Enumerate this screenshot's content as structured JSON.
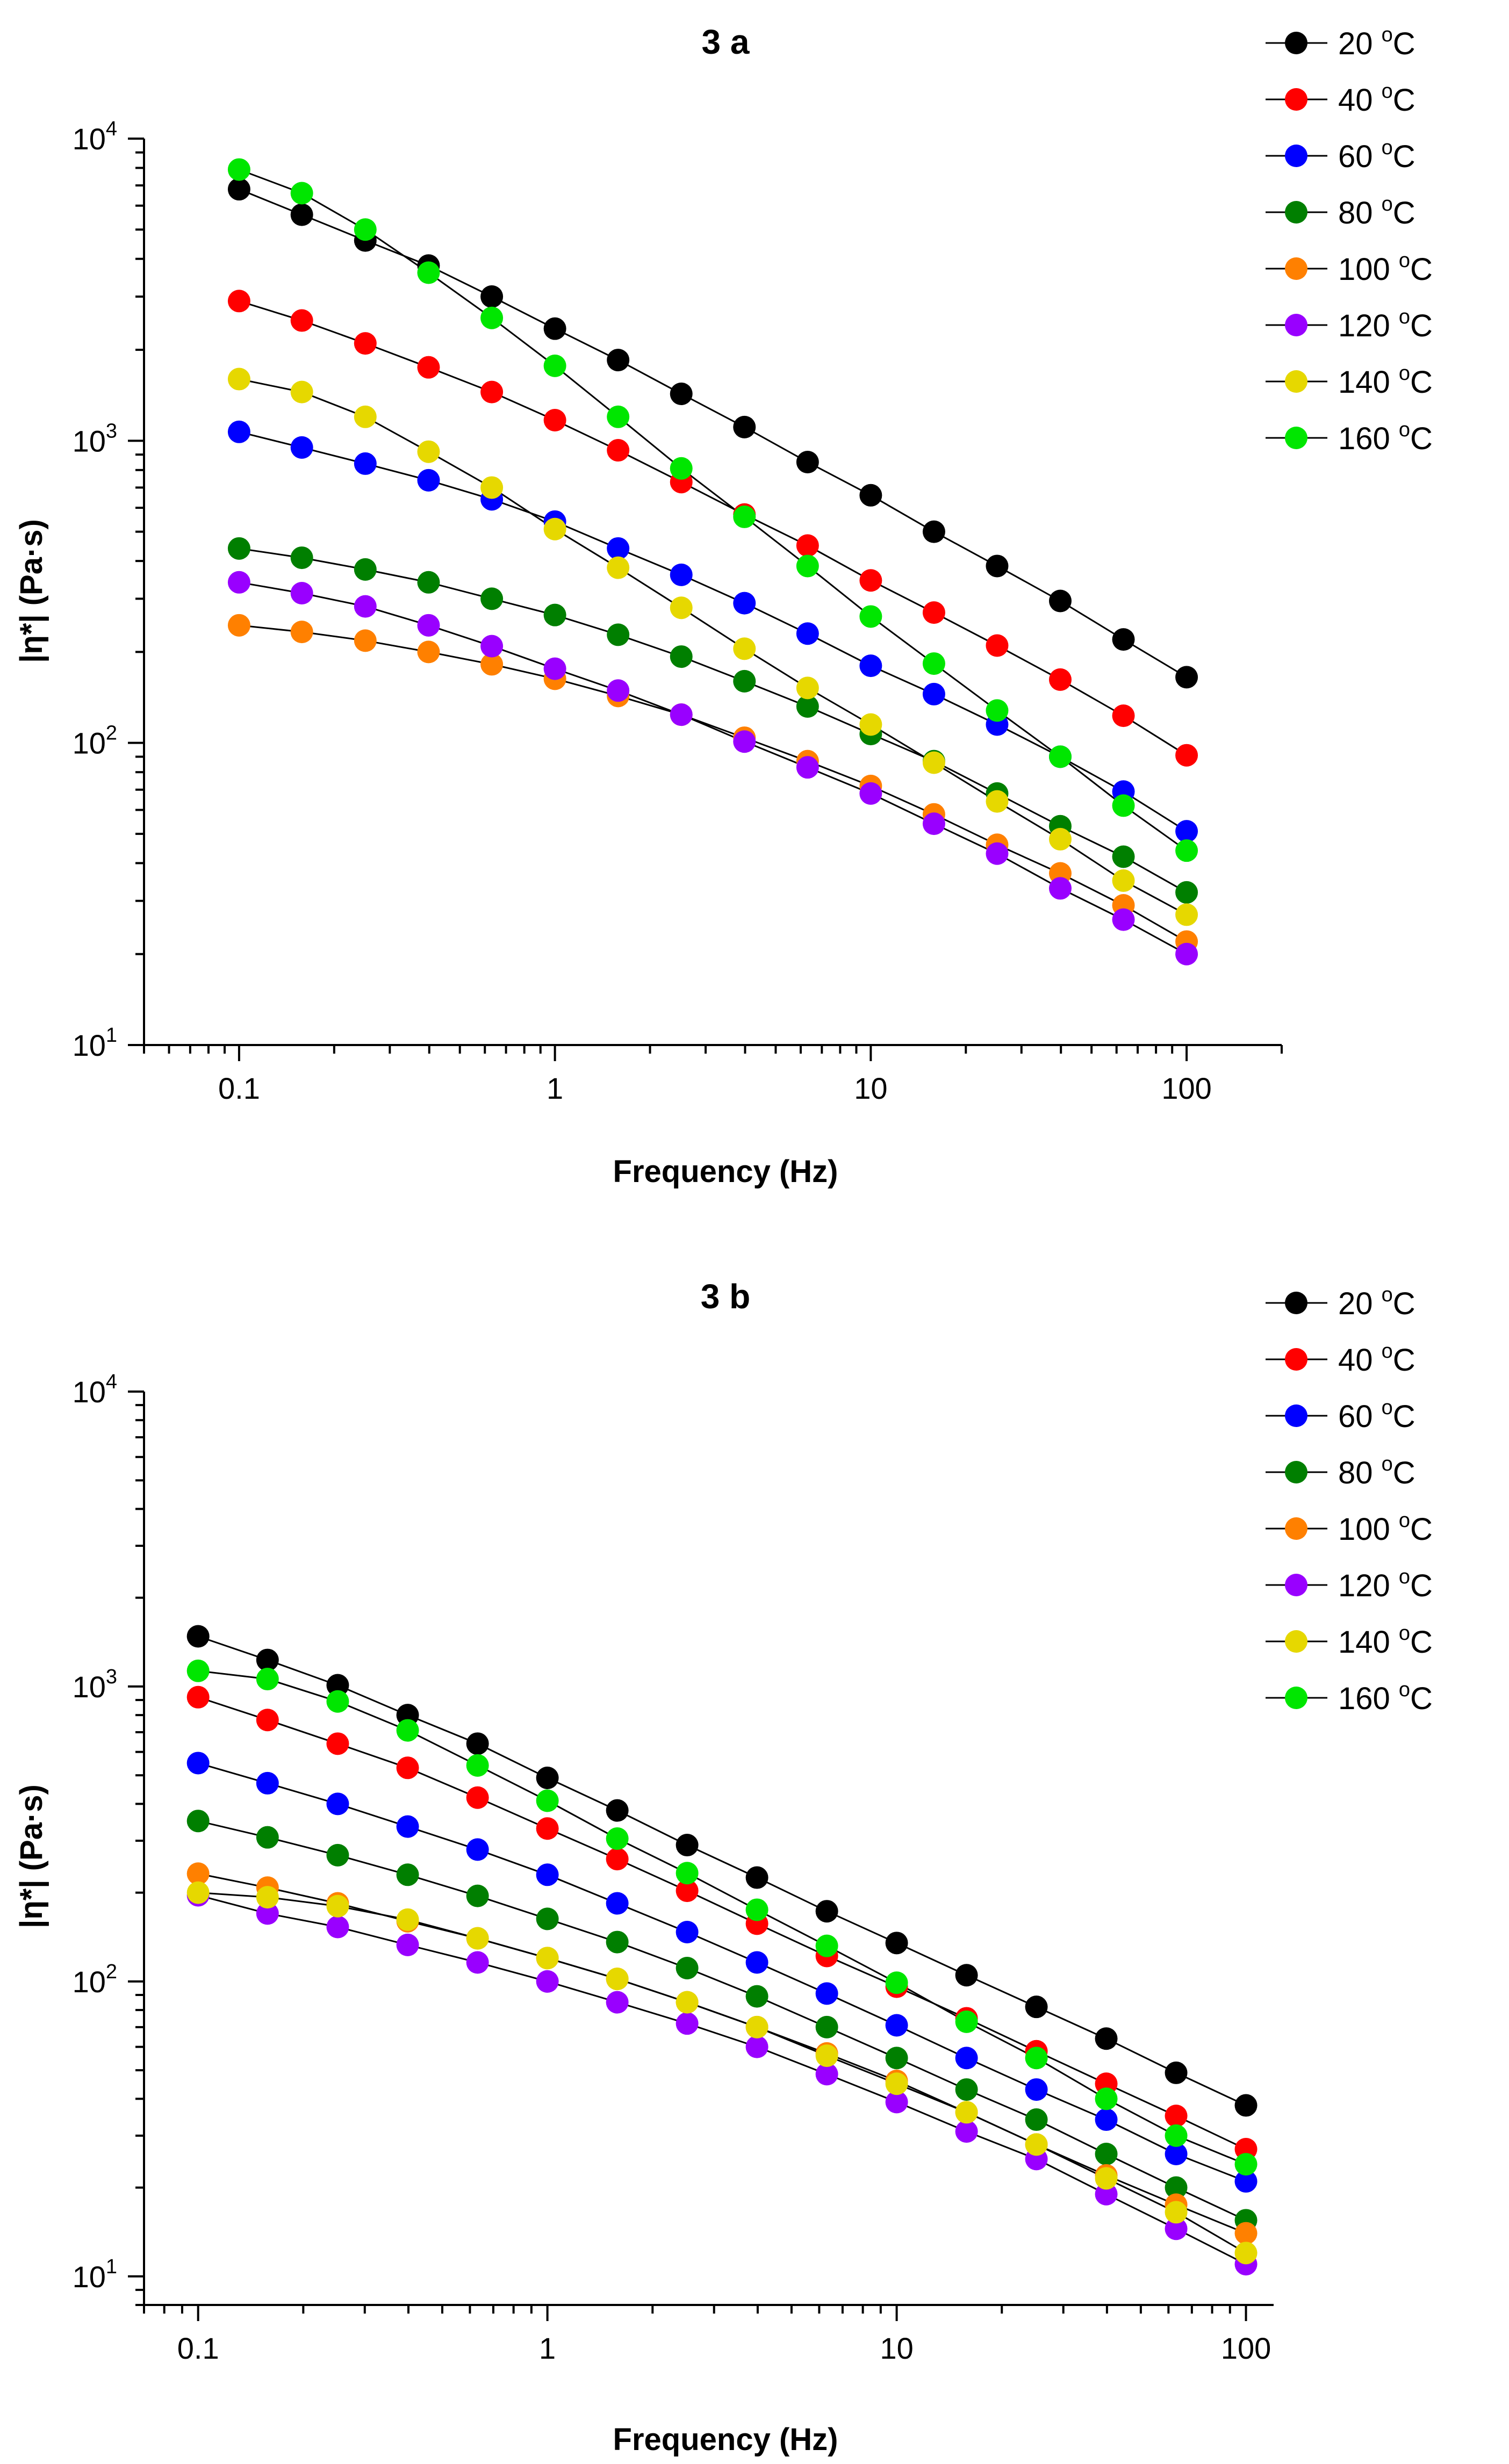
{
  "chart_data": [
    {
      "type": "line",
      "title": "3 a",
      "xlabel": "Frequency (Hz)",
      "ylabel": "|η*| (Pa·s)",
      "xscale": "log",
      "yscale": "log",
      "xlim": [
        0.05,
        200
      ],
      "ylim": [
        10,
        10000
      ],
      "xticks": [
        {
          "value": 0.1,
          "label": "0.1"
        },
        {
          "value": 1,
          "label": "1"
        },
        {
          "value": 10,
          "label": "10"
        },
        {
          "value": 100,
          "label": "100"
        }
      ],
      "yticks": [
        {
          "value": 10,
          "base": "10",
          "exp": "1"
        },
        {
          "value": 100,
          "base": "10",
          "exp": "2"
        },
        {
          "value": 1000,
          "base": "10",
          "exp": "3"
        },
        {
          "value": 10000,
          "base": "10",
          "exp": "4"
        }
      ],
      "legend_position": "top-right outside",
      "x": [
        0.1,
        0.158,
        0.251,
        0.398,
        0.631,
        1,
        1.585,
        2.512,
        3.981,
        6.31,
        10,
        15.85,
        25.12,
        39.81,
        63.1,
        100
      ],
      "series": [
        {
          "name": "20 °C",
          "temp": "20",
          "color": "#000000",
          "values": [
            6800,
            5600,
            4600,
            3800,
            3000,
            2350,
            1850,
            1430,
            1110,
            850,
            660,
            500,
            385,
            295,
            220,
            165
          ]
        },
        {
          "name": "40 °C",
          "temp": "40",
          "color": "#ff0000",
          "values": [
            2900,
            2500,
            2100,
            1750,
            1450,
            1170,
            930,
            730,
            570,
            450,
            345,
            270,
            210,
            162,
            123,
            91
          ]
        },
        {
          "name": "60 °C",
          "temp": "60",
          "color": "#0000ff",
          "values": [
            1070,
            950,
            840,
            740,
            640,
            540,
            440,
            360,
            290,
            230,
            180,
            145,
            115,
            90,
            69,
            51
          ]
        },
        {
          "name": "80 °C",
          "temp": "80",
          "color": "#007f00",
          "values": [
            440,
            410,
            375,
            340,
            300,
            265,
            228,
            193,
            160,
            132,
            107,
            87,
            68,
            53,
            42,
            32
          ]
        },
        {
          "name": "100 °C",
          "temp": "100",
          "color": "#ff8000",
          "values": [
            245,
            233,
            218,
            200,
            182,
            163,
            143,
            124,
            104,
            87,
            72,
            58,
            46,
            37,
            29,
            22
          ]
        },
        {
          "name": "120 °C",
          "temp": "120",
          "color": "#9900ff",
          "values": [
            340,
            313,
            283,
            245,
            209,
            176,
            149,
            124,
            101,
            83,
            68,
            54,
            43,
            33,
            26,
            20
          ]
        },
        {
          "name": "140 °C",
          "temp": "140",
          "color": "#e6d800",
          "values": [
            1600,
            1450,
            1200,
            920,
            700,
            510,
            380,
            280,
            205,
            152,
            115,
            86,
            64,
            48,
            35,
            27
          ]
        },
        {
          "name": "160 °C",
          "temp": "160",
          "color": "#00e600",
          "values": [
            7900,
            6600,
            5000,
            3600,
            2550,
            1770,
            1200,
            810,
            560,
            385,
            262,
            183,
            128,
            90,
            62,
            44
          ]
        }
      ]
    },
    {
      "type": "line",
      "title": "3 b",
      "xlabel": "Frequency (Hz)",
      "ylabel": "|η*| (Pa·s)",
      "xscale": "log",
      "yscale": "log",
      "xlim": [
        0.07,
        120
      ],
      "ylim": [
        8,
        10000
      ],
      "xticks": [
        {
          "value": 0.1,
          "label": "0.1"
        },
        {
          "value": 1,
          "label": "1"
        },
        {
          "value": 10,
          "label": "10"
        },
        {
          "value": 100,
          "label": "100"
        }
      ],
      "yticks": [
        {
          "value": 10,
          "base": "10",
          "exp": "1"
        },
        {
          "value": 100,
          "base": "10",
          "exp": "2"
        },
        {
          "value": 1000,
          "base": "10",
          "exp": "3"
        },
        {
          "value": 10000,
          "base": "10",
          "exp": "4"
        }
      ],
      "legend_position": "top-right outside",
      "x": [
        0.1,
        0.158,
        0.251,
        0.398,
        0.631,
        1,
        1.585,
        2.512,
        3.981,
        6.31,
        10,
        15.85,
        25.12,
        39.81,
        63.1,
        100
      ],
      "series": [
        {
          "name": "20 °C",
          "temp": "20",
          "color": "#000000",
          "values": [
            1480,
            1230,
            1010,
            800,
            640,
            490,
            380,
            290,
            225,
            173,
            135,
            105,
            82,
            64,
            49,
            38
          ]
        },
        {
          "name": "40 °C",
          "temp": "40",
          "color": "#ff0000",
          "values": [
            920,
            770,
            640,
            530,
            420,
            330,
            260,
            203,
            157,
            122,
            96,
            75,
            58,
            45,
            35,
            27
          ]
        },
        {
          "name": "60 °C",
          "temp": "60",
          "color": "#0000ff",
          "values": [
            550,
            470,
            400,
            335,
            280,
            230,
            184,
            147,
            116,
            91,
            71,
            55,
            43,
            34,
            26,
            21
          ]
        },
        {
          "name": "80 °C",
          "temp": "80",
          "color": "#007f00",
          "values": [
            350,
            308,
            268,
            230,
            195,
            163,
            136,
            111,
            89,
            70,
            55,
            43,
            34,
            26,
            20,
            15.5
          ]
        },
        {
          "name": "100 °C",
          "temp": "100",
          "color": "#ff8000",
          "values": [
            232,
            208,
            184,
            160,
            140,
            120,
            102,
            85,
            70,
            57,
            46,
            36,
            28,
            22,
            17.5,
            14
          ]
        },
        {
          "name": "120 °C",
          "temp": "120",
          "color": "#9900ff",
          "values": [
            196,
            170,
            153,
            133,
            116,
            100,
            85,
            72,
            60,
            48.5,
            39,
            31,
            25,
            19,
            14.5,
            11
          ]
        },
        {
          "name": "140 °C",
          "temp": "140",
          "color": "#e6d800",
          "values": [
            200,
            193,
            180,
            162,
            140,
            120,
            102,
            85,
            70,
            56,
            45,
            36,
            28,
            21.5,
            16.5,
            12
          ]
        },
        {
          "name": "160 °C",
          "temp": "160",
          "color": "#00e600",
          "values": [
            1130,
            1060,
            890,
            710,
            540,
            410,
            305,
            233,
            175,
            132,
            99,
            73,
            55,
            40,
            30,
            24
          ]
        }
      ]
    }
  ]
}
